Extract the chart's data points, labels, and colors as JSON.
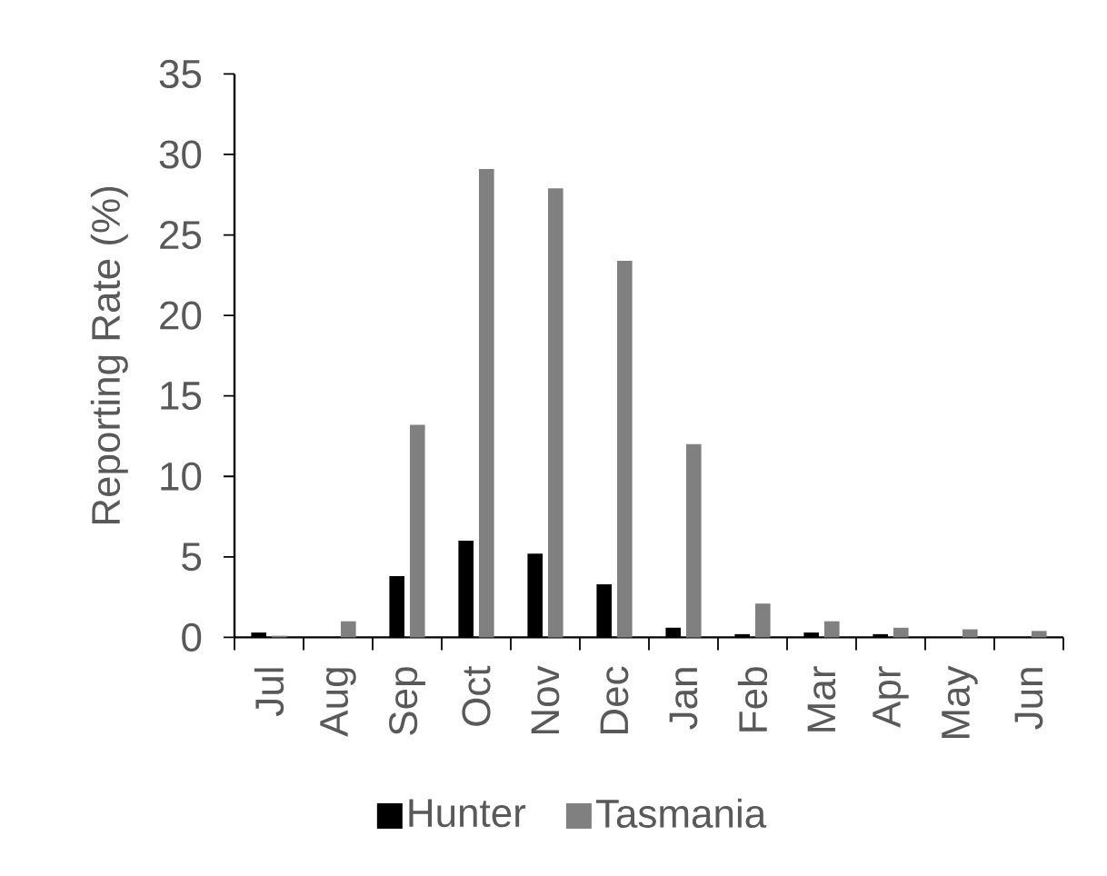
{
  "chart_data": {
    "type": "bar",
    "ylabel": "Reporting Rate (%)",
    "categories": [
      "Jul",
      "Aug",
      "Sep",
      "Oct",
      "Nov",
      "Dec",
      "Jan",
      "Feb",
      "Mar",
      "Apr",
      "May",
      "Jun"
    ],
    "series": [
      {
        "name": "Hunter",
        "color": "#000000",
        "values": [
          0.3,
          0.0,
          3.8,
          6.0,
          5.2,
          3.3,
          0.6,
          0.2,
          0.3,
          0.2,
          0.0,
          0.0
        ]
      },
      {
        "name": "Tasmania",
        "color": "#808080",
        "values": [
          0.1,
          1.0,
          13.2,
          29.1,
          27.9,
          23.4,
          12.0,
          2.1,
          1.0,
          0.6,
          0.5,
          0.4
        ]
      }
    ],
    "ylim": [
      0,
      35
    ],
    "yticks": [
      0,
      5,
      10,
      15,
      20,
      25,
      30,
      35
    ],
    "legend": "bottom"
  }
}
